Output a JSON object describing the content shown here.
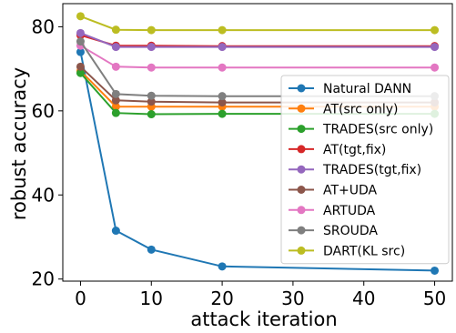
{
  "chart_data": {
    "type": "line",
    "title": "",
    "xlabel": "attack iteration",
    "ylabel": "robust accuracy",
    "xlim": [
      -2.5,
      52.5
    ],
    "ylim": [
      19.5,
      85.5
    ],
    "xticks": [
      0,
      10,
      20,
      30,
      40,
      50
    ],
    "yticks": [
      20,
      40,
      60,
      80
    ],
    "x": [
      0,
      5,
      10,
      20,
      50
    ],
    "legend_position": "right",
    "grid": false,
    "series": [
      {
        "name": "Natural DANN",
        "color": "#1f77b4",
        "values": [
          74.0,
          31.5,
          27.0,
          23.0,
          22.0
        ]
      },
      {
        "name": "AT(src only)",
        "color": "#ff7f0e",
        "values": [
          69.5,
          61.0,
          61.0,
          61.0,
          61.0
        ]
      },
      {
        "name": "TRADES(src only)",
        "color": "#2ca02c",
        "values": [
          69.0,
          59.5,
          59.2,
          59.3,
          59.3
        ]
      },
      {
        "name": "AT(tgt,fix)",
        "color": "#d62728",
        "values": [
          78.0,
          75.5,
          75.5,
          75.4,
          75.4
        ]
      },
      {
        "name": "TRADES(tgt,fix)",
        "color": "#9467bd",
        "values": [
          78.5,
          75.2,
          75.2,
          75.2,
          75.2
        ]
      },
      {
        "name": "AT+UDA",
        "color": "#8c564b",
        "values": [
          70.5,
          62.5,
          62.2,
          62.0,
          62.0
        ]
      },
      {
        "name": "ARTUDA",
        "color": "#e377c2",
        "values": [
          75.5,
          70.5,
          70.3,
          70.3,
          70.3
        ]
      },
      {
        "name": "SROUDA",
        "color": "#7f7f7f",
        "values": [
          76.5,
          64.0,
          63.6,
          63.5,
          63.5
        ]
      },
      {
        "name": "DART(KL src)",
        "color": "#bcbd22",
        "values": [
          82.5,
          79.3,
          79.2,
          79.2,
          79.2
        ]
      }
    ]
  }
}
